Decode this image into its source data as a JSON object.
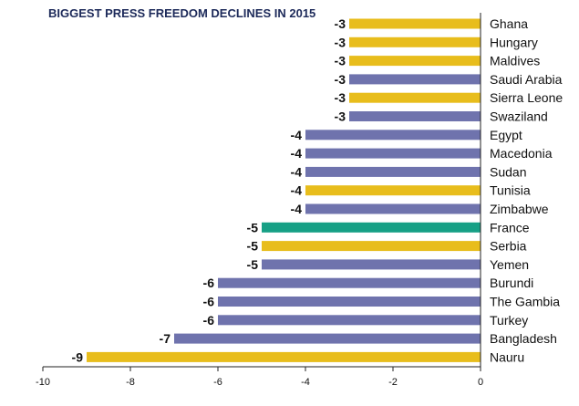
{
  "chart_data": {
    "type": "bar",
    "orientation": "horizontal",
    "title": "BIGGEST PRESS FREEDOM DECLINES IN 2015",
    "categories": [
      "Ghana",
      "Hungary",
      "Maldives",
      "Saudi Arabia",
      "Sierra Leone",
      "Swaziland",
      "Egypt",
      "Macedonia",
      "Sudan",
      "Tunisia",
      "Zimbabwe",
      "France",
      "Serbia",
      "Yemen",
      "Burundi",
      "The Gambia",
      "Turkey",
      "Bangladesh",
      "Nauru"
    ],
    "values": [
      -3,
      -3,
      -3,
      -3,
      -3,
      -3,
      -4,
      -4,
      -4,
      -4,
      -4,
      -5,
      -5,
      -5,
      -6,
      -6,
      -6,
      -7,
      -9
    ],
    "value_labels": [
      "-3",
      "-3",
      "-3",
      "-3",
      "-3",
      "-3",
      "-4",
      "-4",
      "-4",
      "-4",
      "-4",
      "-5",
      "-5",
      "-5",
      "-6",
      "-6",
      "-6",
      "-7",
      "-9"
    ],
    "bar_colors": [
      "yellow",
      "yellow",
      "yellow",
      "blue",
      "yellow",
      "blue",
      "blue",
      "blue",
      "blue",
      "yellow",
      "blue",
      "green",
      "yellow",
      "blue",
      "blue",
      "blue",
      "blue",
      "blue",
      "yellow"
    ],
    "palette": {
      "yellow": "#e8bd1c",
      "blue": "#6f73ad",
      "green": "#16a085"
    },
    "xlim": [
      -10,
      0
    ],
    "x_ticks": [
      "-10",
      "-8",
      "-6",
      "-4",
      "-2",
      "0"
    ],
    "x_tick_values": [
      -10,
      -8,
      -6,
      -4,
      -2,
      0
    ],
    "grid": false,
    "legend": "none"
  }
}
